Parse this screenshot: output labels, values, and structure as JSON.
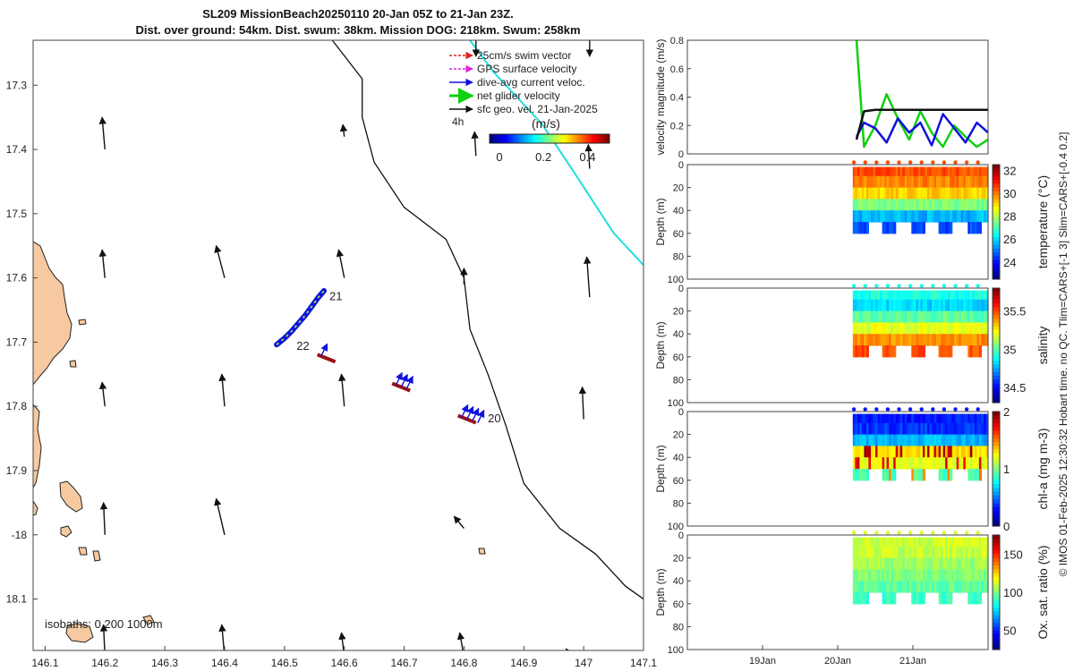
{
  "title_lines": [
    "SL209 MissionBeach20250110 20-Jan 05Z to 21-Jan 23Z.",
    "Dist. over ground: 54km. Dist. swum: 38km. Mission DOG: 218km. Swum: 258km"
  ],
  "map": {
    "type": "map",
    "xlim": [
      146.08,
      147.1
    ],
    "ylim": [
      -18.18,
      -17.23
    ],
    "xticks": [
      146.1,
      146.2,
      146.3,
      146.4,
      146.5,
      146.6,
      146.7,
      146.8,
      146.9,
      147,
      147.1
    ],
    "yticks": [
      -17.3,
      -17.4,
      -17.5,
      -17.6,
      -17.7,
      -17.8,
      -17.9,
      -18,
      -18.1
    ],
    "xtick_labels": [
      "146.1",
      "146.2",
      "146.3",
      "146.4",
      "146.5",
      "146.6",
      "146.7",
      "146.8",
      "146.9",
      "147",
      "147.1"
    ],
    "ytick_labels": [
      "17.3",
      "17.4",
      "17.5",
      "17.6",
      "17.7",
      "17.8",
      "17.9",
      "-18",
      "18.1"
    ],
    "legend": [
      {
        "label": "25cm/s swim vector",
        "color": "#e02020"
      },
      {
        "label": "GPS surface velocity",
        "color": "#e020e0"
      },
      {
        "label": "dive-avg current veloc.",
        "color": "#1010e0"
      },
      {
        "label": "net glider velocity",
        "color": "#10d010"
      },
      {
        "label": "sfc geo. vel. 21-Jan-2025",
        "color": "#111111"
      }
    ],
    "colorbar": {
      "label": "(m/s)",
      "prefix": "4h",
      "ticks": [
        "0",
        "0.2",
        "0.4"
      ],
      "range": [
        0,
        0.5
      ]
    },
    "isobaths_label": "isobaths: 0   200  1000m",
    "glider_track": [
      [
        146.487,
        -17.704
      ],
      [
        146.5,
        -17.694
      ],
      [
        146.512,
        -17.683
      ],
      [
        146.523,
        -17.671
      ],
      [
        146.535,
        -17.658
      ],
      [
        146.546,
        -17.644
      ],
      [
        146.556,
        -17.631
      ],
      [
        146.566,
        -17.62
      ]
    ],
    "track_labels": [
      {
        "text": "21",
        "lon": 146.575,
        "lat": -17.635
      },
      {
        "text": "22",
        "lon": 146.52,
        "lat": -17.712
      },
      {
        "text": "20",
        "lon": 146.84,
        "lat": -17.825
      }
    ],
    "isobath_200": [
      [
        146.58,
        -17.23
      ],
      [
        146.63,
        -17.29
      ],
      [
        146.63,
        -17.35
      ],
      [
        146.65,
        -17.42
      ],
      [
        146.7,
        -17.49
      ],
      [
        146.77,
        -17.54
      ],
      [
        146.8,
        -17.6
      ],
      [
        146.81,
        -17.68
      ],
      [
        146.84,
        -17.75
      ],
      [
        146.87,
        -17.83
      ],
      [
        146.9,
        -17.92
      ],
      [
        146.96,
        -17.99
      ],
      [
        147.02,
        -18.03
      ],
      [
        147.07,
        -18.08
      ],
      [
        147.1,
        -18.1
      ]
    ],
    "isobath_1000": [
      [
        146.81,
        -17.23
      ],
      [
        146.85,
        -17.28
      ],
      [
        146.93,
        -17.36
      ],
      [
        146.98,
        -17.43
      ],
      [
        147.05,
        -17.53
      ],
      [
        147.1,
        -17.58
      ]
    ],
    "surface_vectors": [
      {
        "lon": 146.2,
        "lat": -17.4,
        "u": -0.1,
        "v": 0.4
      },
      {
        "lon": 146.6,
        "lat": -17.38,
        "u": -0.05,
        "v": 0.15
      },
      {
        "lon": 146.82,
        "lat": -17.41,
        "u": -0.05,
        "v": 0.3
      },
      {
        "lon": 147.01,
        "lat": -17.43,
        "u": -0.05,
        "v": 0.3
      },
      {
        "lon": 146.2,
        "lat": -17.6,
        "u": -0.1,
        "v": 0.35
      },
      {
        "lon": 146.4,
        "lat": -17.6,
        "u": -0.3,
        "v": 0.4
      },
      {
        "lon": 146.6,
        "lat": -17.6,
        "u": -0.2,
        "v": 0.35
      },
      {
        "lon": 146.8,
        "lat": -17.61,
        "u": 0.0,
        "v": 0.2
      },
      {
        "lon": 147.01,
        "lat": -17.63,
        "u": -0.1,
        "v": 0.5
      },
      {
        "lon": 146.2,
        "lat": -17.8,
        "u": -0.1,
        "v": 0.3
      },
      {
        "lon": 146.4,
        "lat": -17.8,
        "u": -0.1,
        "v": 0.4
      },
      {
        "lon": 146.6,
        "lat": -17.8,
        "u": -0.1,
        "v": 0.4
      },
      {
        "lon": 147.0,
        "lat": -17.82,
        "u": -0.05,
        "v": 0.4
      },
      {
        "lon": 146.2,
        "lat": -18.0,
        "u": -0.05,
        "v": 0.4
      },
      {
        "lon": 146.4,
        "lat": -18.0,
        "u": -0.3,
        "v": 0.45
      },
      {
        "lon": 146.8,
        "lat": -17.99,
        "u": -0.35,
        "v": 0.15
      },
      {
        "lon": 146.2,
        "lat": -18.19,
        "u": -0.05,
        "v": 0.4
      },
      {
        "lon": 146.4,
        "lat": -18.19,
        "u": -0.1,
        "v": 0.4
      },
      {
        "lon": 146.6,
        "lat": -18.19,
        "u": -0.1,
        "v": 0.3
      },
      {
        "lon": 146.8,
        "lat": -18.19,
        "u": -0.15,
        "v": 0.3
      },
      {
        "lon": 146.98,
        "lat": -18.19,
        "u": -0.2,
        "v": 0.1
      },
      {
        "lon": 146.82,
        "lat": -17.23,
        "u": 0.0,
        "v": -0.2
      },
      {
        "lon": 147.01,
        "lat": -17.23,
        "u": 0.0,
        "v": -0.2
      }
    ],
    "current_markers": [
      {
        "lon": 146.57,
        "lat": -17.725,
        "n": 1
      },
      {
        "lon": 146.695,
        "lat": -17.77,
        "n": 3
      },
      {
        "lon": 146.805,
        "lat": -17.82,
        "n": 4
      }
    ]
  },
  "chart_data": [
    {
      "type": "line",
      "ylabel": "velocity magnitude (m/s)",
      "ylim": [
        0,
        0.8
      ],
      "yticks": [
        "0",
        "0.2",
        "0.4",
        "0.6",
        "0.8"
      ],
      "xlim": [
        18.0,
        22.0
      ],
      "x": [
        20.25,
        20.35,
        20.5,
        20.65,
        20.8,
        20.95,
        21.1,
        21.25,
        21.4,
        21.55,
        21.7,
        21.85,
        22.0
      ],
      "series": [
        {
          "name": "net glider velocity",
          "color": "#10d010",
          "values": [
            0.8,
            0.05,
            0.2,
            0.42,
            0.25,
            0.1,
            0.3,
            0.15,
            0.05,
            0.2,
            0.12,
            0.05,
            0.1
          ]
        },
        {
          "name": "dive-avg current veloc.",
          "color": "#1010e0",
          "values": [
            0.12,
            0.22,
            0.18,
            0.08,
            0.25,
            0.15,
            0.22,
            0.06,
            0.28,
            0.18,
            0.08,
            0.22,
            0.15
          ]
        },
        {
          "name": "sfc geo. vel.",
          "color": "#111111",
          "values": [
            0.1,
            0.3,
            0.31,
            0.31,
            0.31,
            0.31,
            0.31,
            0.31,
            0.31,
            0.31,
            0.31,
            0.31,
            0.31
          ]
        }
      ]
    },
    {
      "type": "heatmap",
      "variable": "temperature",
      "clabel": "temperature (°C)",
      "ylabel": "Depth (m)",
      "yticks": [
        "0",
        "20",
        "40",
        "60",
        "80",
        "100"
      ],
      "crange": [
        22.5,
        32.5
      ],
      "cticks": [
        "24",
        "26",
        "28",
        "30",
        "32"
      ],
      "depth_bins": [
        5,
        15,
        25,
        35,
        45,
        55
      ],
      "values": [
        30.5,
        30.0,
        29.2,
        27.5,
        25.5,
        24.5
      ]
    },
    {
      "type": "heatmap",
      "variable": "salinity",
      "clabel": "salinity",
      "ylabel": "Depth (m)",
      "yticks": [
        "0",
        "20",
        "40",
        "60",
        "80",
        "100"
      ],
      "crange": [
        34.3,
        35.8
      ],
      "cticks": [
        "34.5",
        "35",
        "35.5"
      ],
      "depth_bins": [
        5,
        15,
        25,
        35,
        45,
        55
      ],
      "values": [
        34.9,
        34.8,
        35.0,
        35.2,
        35.4,
        35.5
      ]
    },
    {
      "type": "heatmap",
      "variable": "chl-a",
      "clabel": "chl-a (mg m-3)",
      "ylabel": "Depth (m)",
      "yticks": [
        "0",
        "20",
        "40",
        "60",
        "80",
        "100"
      ],
      "crange": [
        0,
        2
      ],
      "cticks": [
        "0",
        "1",
        "2"
      ],
      "depth_bins": [
        5,
        15,
        25,
        35,
        45,
        55
      ],
      "values": [
        0.3,
        0.35,
        0.6,
        1.3,
        1.2,
        0.9
      ]
    },
    {
      "type": "heatmap",
      "variable": "oxygen",
      "clabel": "Ox. sat. ratio (%)",
      "ylabel": "Depth (m)",
      "yticks": [
        "0",
        "20",
        "40",
        "60",
        "80",
        "100"
      ],
      "crange": [
        25,
        175
      ],
      "cticks": [
        "50",
        "100",
        "150"
      ],
      "depth_bins": [
        5,
        15,
        25,
        35,
        45,
        55
      ],
      "values": [
        112,
        110,
        105,
        100,
        95,
        90
      ]
    }
  ],
  "time_axis": {
    "labels": [
      "19Jan",
      "20Jan",
      "21Jan"
    ],
    "values": [
      19,
      20,
      21
    ],
    "range": [
      18.0,
      22.0
    ],
    "data_start": 20.2
  },
  "footer_text": "© IMOS 01-Feb-2025 12:30:32 Hobart time. no QC. Tlim=CARS+[-1 3] Slim=CARS+[-0.4 0.2]"
}
